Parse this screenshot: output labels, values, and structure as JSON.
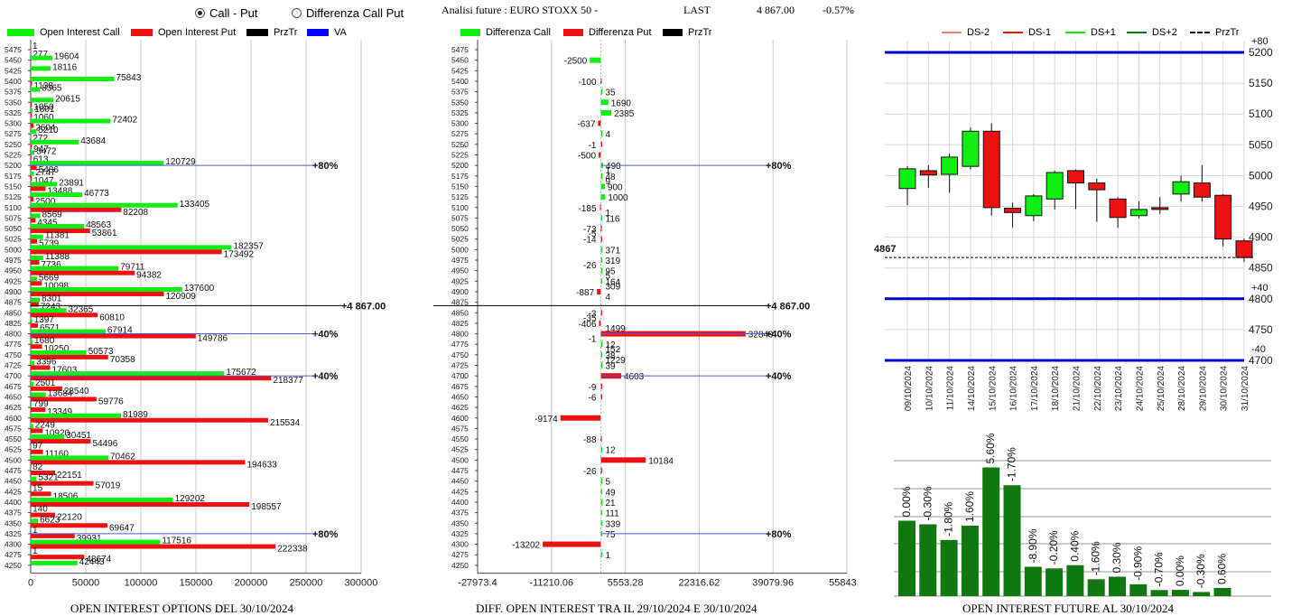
{
  "header": {
    "radio_call_put": "Call - Put",
    "radio_diff": "Differenza Call Put",
    "title": "Analisi future : EURO STOXX 50 -",
    "last_label": "LAST",
    "last_value": "4 867.00",
    "change": "-0.57%"
  },
  "colors": {
    "call": "#11ee11",
    "put": "#ee1111",
    "prztr": "#000000",
    "va": "#0000ff",
    "bar_green": "#117711",
    "band": "#0000cc"
  },
  "legend1": [
    "Open Interest Call",
    "Open Interest Put",
    "PrzTr",
    "VA"
  ],
  "legend2": [
    "Differenza Call",
    "Differenza Put",
    "PrzTr"
  ],
  "legend3": [
    "DS-2",
    "DS-1",
    "DS+1",
    "DS+2",
    "PrzTr"
  ],
  "footers": {
    "left": "OPEN INTEREST OPTIONS DEL 30/10/2024",
    "middle": "DIFF. OPEN INTEREST TRA IL 29/10/2024 E 30/10/2024",
    "right": "OPEN INTEREST FUTURE AL 30/10/2024"
  },
  "chart_data": [
    {
      "type": "bar",
      "orientation": "horizontal",
      "strikes": [
        "5475",
        "5450",
        "5425",
        "5400",
        "5375",
        "5350",
        "5325",
        "5300",
        "5275",
        "5250",
        "5225",
        "5200",
        "5175",
        "5150",
        "5125",
        "5100",
        "5075",
        "5050",
        "5025",
        "5000",
        "4975",
        "4950",
        "4925",
        "4900",
        "4875",
        "4850",
        "4825",
        "4800",
        "4775",
        "4750",
        "4725",
        "4700",
        "4675",
        "4650",
        "4625",
        "4600",
        "4575",
        "4550",
        "4525",
        "4500",
        "4475",
        "4450",
        "4425",
        "4400",
        "4375",
        "4350",
        "4325",
        "4300",
        "4275",
        "4250"
      ],
      "series": [
        {
          "name": "Open Interest Call",
          "values": [
            1,
            19604,
            18116,
            75843,
            8365,
            20615,
            1801,
            72402,
            5210,
            43684,
            3472,
            120729,
            2747,
            23891,
            46773,
            133405,
            8569,
            48563,
            11381,
            182357,
            11388,
            79711,
            5669,
            137600,
            8301,
            32365,
            1397,
            67914,
            1680,
            50573,
            3396,
            175672,
            2501,
            13684,
            799,
            81989,
            2249,
            30451,
            97,
            70462,
            82,
            5321,
            15,
            129202,
            140,
            6623,
            1,
            117516,
            1,
            42443
          ]
        },
        {
          "name": "Open Interest Put",
          "values": [
            277,
            1,
            1,
            1138,
            1,
            1050,
            1060,
            2604,
            272,
            947,
            613,
            5486,
            1047,
            13488,
            2500,
            82208,
            4345,
            53861,
            5739,
            173492,
            7736,
            94382,
            10098,
            120909,
            7243,
            60810,
            6571,
            149786,
            10250,
            70358,
            17603,
            218377,
            28540,
            59776,
            13349,
            215534,
            10920,
            54496,
            11160,
            194633,
            22151,
            57019,
            18506,
            198557,
            22120,
            69647,
            39931,
            222338,
            48674,
            1
          ]
        }
      ],
      "value_labels": [
        [
          "1",
          "19604",
          "18116",
          "75843",
          "8365",
          "20615",
          "1801",
          "72402",
          "5210",
          "43684",
          "3472",
          "120729",
          "2747",
          "23891",
          "46773",
          "133405",
          "8569",
          "48563",
          "11381",
          "182357",
          "11388",
          "79711",
          "5669",
          "137600",
          "8301",
          "32365",
          "1397",
          "67914",
          "1680",
          "50573",
          "3396",
          "175672",
          "2501",
          "13684",
          "799",
          "81989",
          "2249",
          "30451",
          "97",
          "70462",
          "82",
          "5321",
          "15",
          "129202",
          "140",
          "6623",
          "1",
          "117516",
          "1",
          "42443"
        ],
        [
          "277",
          "",
          "",
          "1138",
          "",
          "1050",
          "1060",
          "2604",
          "272",
          "947",
          "613",
          "5486",
          "1047",
          "13488",
          "2500",
          "82208",
          "4345",
          "53861",
          "5739",
          "173492",
          "7736",
          "94382",
          "10098",
          "120909",
          "7243",
          "60810",
          "6571",
          "149786",
          "10250",
          "70358",
          "17603",
          "218377",
          "28540",
          "59776",
          "13349",
          "215534",
          "10920",
          "54496",
          "11160",
          "194633",
          "22151",
          "57019",
          "18506",
          "198557",
          "22120",
          "69647",
          "39931",
          "222338",
          "48674",
          ""
        ]
      ],
      "xlim": [
        0,
        300000
      ],
      "xticks": [
        "0",
        "50000",
        "100000",
        "150000",
        "200000",
        "250000",
        "300000"
      ],
      "prztr": {
        "strike": 4867,
        "label": "4 867.00"
      },
      "va_lines": [
        {
          "strike": 5200,
          "label": "80%"
        },
        {
          "strike": 4800,
          "label": "40%"
        },
        {
          "strike": 4700,
          "label": "40%"
        },
        {
          "strike": 4325,
          "label": "80%"
        }
      ]
    },
    {
      "type": "bar",
      "orientation": "horizontal",
      "strikes": [
        "5475",
        "5450",
        "5425",
        "5400",
        "5375",
        "5350",
        "5325",
        "5300",
        "5275",
        "5250",
        "5225",
        "5200",
        "5175",
        "5150",
        "5125",
        "5100",
        "5075",
        "5050",
        "5025",
        "5000",
        "4975",
        "4950",
        "4925",
        "4900",
        "4875",
        "4850",
        "4825",
        "4800",
        "4775",
        "4750",
        "4725",
        "4700",
        "4675",
        "4650",
        "4625",
        "4600",
        "4575",
        "4550",
        "4525",
        "4500",
        "4475",
        "4450",
        "4425",
        "4400",
        "4375",
        "4350",
        "4325",
        "4300",
        "4275",
        "4250"
      ],
      "values": [
        0,
        -2500,
        0,
        -100,
        35,
        1690,
        2385,
        -637,
        4,
        -1,
        -500,
        490,
        48,
        900,
        1000,
        -185,
        116,
        -73,
        -14,
        371,
        319,
        95,
        164,
        -887,
        0,
        -3,
        -406,
        32849,
        12,
        38,
        39,
        4603,
        -9,
        -6,
        0,
        -9174,
        0,
        -88,
        12,
        10184,
        -26,
        5,
        49,
        21,
        111,
        339,
        75,
        -13202,
        1,
        0
      ],
      "extra_labels": [
        {
          "strike": "5200",
          "text": "1"
        },
        {
          "strike": "5175",
          "text": "9"
        },
        {
          "strike": "5100",
          "text": "1"
        },
        {
          "strike": "5050",
          "text": "-5"
        },
        {
          "strike": "4975",
          "text": "-26"
        },
        {
          "strike": "4950",
          "text": "5"
        },
        {
          "strike": "4925",
          "text": "309"
        },
        {
          "strike": "4900",
          "text": "4"
        },
        {
          "strike": "4850",
          "text": "-35"
        },
        {
          "strike": "4825",
          "text": "1499"
        },
        {
          "strike": "4800",
          "text": "-1"
        },
        {
          "strike": "4775",
          "text": "152"
        },
        {
          "strike": "4750",
          "text": "1229"
        }
      ],
      "xlim": [
        -27973.4,
        55843.3
      ],
      "xticks": [
        "-27973.4",
        "-11210.06",
        "5553.28",
        "22316.62",
        "39079.96",
        "55843.3"
      ],
      "prztr": {
        "strike": 4867,
        "label": "4 867.00"
      },
      "va_lines": [
        {
          "strike": 5200,
          "label": "80%"
        },
        {
          "strike": 4800,
          "label": "40%"
        },
        {
          "strike": 4700,
          "label": "40%"
        },
        {
          "strike": 4325,
          "label": "80%"
        }
      ]
    },
    {
      "type": "candlestick",
      "dates": [
        "09/10/2024",
        "10/10/2024",
        "11/10/2024",
        "14/10/2024",
        "15/10/2024",
        "16/10/2024",
        "17/10/2024",
        "18/10/2024",
        "21/10/2024",
        "22/10/2024",
        "23/10/2024",
        "24/10/2024",
        "25/10/2024",
        "28/10/2024",
        "29/10/2024",
        "30/10/2024",
        "31/10/2024"
      ],
      "ohlc": [
        [
          4979,
          5015,
          4952,
          5011
        ],
        [
          5008,
          5017,
          4980,
          5001
        ],
        [
          5002,
          5036,
          4972,
          5030
        ],
        [
          5015,
          5078,
          5010,
          5072
        ],
        [
          5072,
          5085,
          4935,
          4948
        ],
        [
          4947,
          4956,
          4916,
          4940
        ],
        [
          4935,
          4970,
          4926,
          4967
        ],
        [
          4962,
          5008,
          4945,
          5005
        ],
        [
          5008,
          5010,
          4946,
          4988
        ],
        [
          4988,
          4995,
          4925,
          4977
        ],
        [
          4962,
          4965,
          4915,
          4932
        ],
        [
          4935,
          4958,
          4930,
          4945
        ],
        [
          4948,
          4965,
          4938,
          4945
        ],
        [
          4970,
          5000,
          4958,
          4990
        ],
        [
          4988,
          5017,
          4958,
          4965
        ],
        [
          4968,
          4970,
          4885,
          4897
        ],
        [
          4894,
          4898,
          4860,
          4867
        ]
      ],
      "ylim": [
        4700,
        5200
      ],
      "yticks": [
        "4700",
        "4750",
        "4800",
        "4850",
        "4900",
        "4950",
        "5000",
        "5050",
        "5100",
        "5150",
        "5200"
      ],
      "last": "4867",
      "bands": [
        {
          "value": 5200,
          "label": "+80"
        },
        {
          "value": 4800,
          "label": "+40"
        },
        {
          "value": 4700,
          "label": "-40"
        }
      ]
    },
    {
      "type": "bar",
      "values": [
        0.0,
        -0.3,
        -1.8,
        1.6,
        5.6,
        -1.7,
        -8.9,
        -0.2,
        0.4,
        -1.6,
        0.3,
        -0.9,
        -0.7,
        0.0,
        -0.3,
        0.6
      ],
      "labels": [
        "0.00%",
        "-0.30%",
        "-1.80%",
        "1.60%",
        "5.60%",
        "-1.70%",
        "-8.90%",
        "-0.20%",
        "0.40%",
        "-1.60%",
        "0.30%",
        "-0.90%",
        "-0.70%",
        "0.00%",
        "-0.30%",
        "0.60%"
      ],
      "open_interest_levels": [
        83.5,
        79.5,
        62.2,
        78.0,
        142.5,
        122.8,
        32.5,
        30.7,
        34.3,
        18.7,
        21.5,
        13.1,
        6.7,
        6.9,
        4.6,
        9.0
      ]
    }
  ]
}
